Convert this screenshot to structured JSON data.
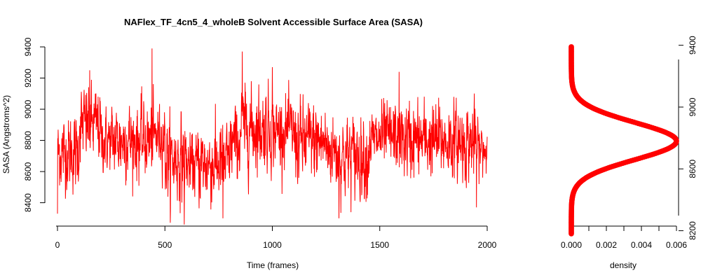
{
  "chart_data": [
    {
      "type": "line",
      "title": "NAFlex_TF_4cn5_4_wholeB Solvent Accessible Surface Area (SASA)",
      "xlabel": "Time (frames)",
      "ylabel": "SASA (Angstroms^2)",
      "xlim": [
        0,
        2000
      ],
      "ylim": [
        8250,
        9400
      ],
      "xticks": [
        0,
        500,
        1000,
        1500,
        2000
      ],
      "yticks": [
        8400,
        8600,
        8800,
        9000,
        9200,
        9400
      ],
      "grid": false,
      "color": "#ff0000",
      "n_points": 2001,
      "segments": [
        {
          "x": [
            0,
            100
          ],
          "mean": 8720,
          "sd": 110
        },
        {
          "x": [
            100,
            200
          ],
          "mean": 8900,
          "sd": 110
        },
        {
          "x": [
            200,
            250
          ],
          "mean": 8800,
          "sd": 90
        },
        {
          "x": [
            250,
            450
          ],
          "mean": 8800,
          "sd": 110
        },
        {
          "x": [
            450,
            500
          ],
          "mean": 8830,
          "sd": 90
        },
        {
          "x": [
            500,
            600
          ],
          "mean": 8680,
          "sd": 120
        },
        {
          "x": [
            600,
            650
          ],
          "mean": 8640,
          "sd": 90
        },
        {
          "x": [
            650,
            800
          ],
          "mean": 8650,
          "sd": 120
        },
        {
          "x": [
            800,
            850
          ],
          "mean": 8780,
          "sd": 110
        },
        {
          "x": [
            850,
            1000
          ],
          "mean": 8880,
          "sd": 120
        },
        {
          "x": [
            1000,
            1100
          ],
          "mean": 8860,
          "sd": 100
        },
        {
          "x": [
            1100,
            1250
          ],
          "mean": 8790,
          "sd": 120
        },
        {
          "x": [
            1250,
            1300
          ],
          "mean": 8740,
          "sd": 100
        },
        {
          "x": [
            1300,
            1450
          ],
          "mean": 8700,
          "sd": 120
        },
        {
          "x": [
            1450,
            1500
          ],
          "mean": 8800,
          "sd": 90
        },
        {
          "x": [
            1500,
            1600
          ],
          "mean": 8820,
          "sd": 100
        },
        {
          "x": [
            1600,
            1800
          ],
          "mean": 8800,
          "sd": 110
        },
        {
          "x": [
            1800,
            1950
          ],
          "mean": 8790,
          "sd": 110
        },
        {
          "x": [
            1950,
            2000
          ],
          "mean": 8740,
          "sd": 80
        }
      ],
      "spikes": [
        {
          "x": 0,
          "y": 8330
        },
        {
          "x": 150,
          "y": 9250
        },
        {
          "x": 440,
          "y": 9390
        },
        {
          "x": 590,
          "y": 8260
        },
        {
          "x": 770,
          "y": 8300
        },
        {
          "x": 860,
          "y": 9370
        },
        {
          "x": 1000,
          "y": 9270
        },
        {
          "x": 1310,
          "y": 8300
        },
        {
          "x": 1590,
          "y": 9240
        },
        {
          "x": 1950,
          "y": 8370
        }
      ]
    },
    {
      "type": "line",
      "xlabel": "density",
      "ylabel": "",
      "xlim": [
        0,
        0.006
      ],
      "ylim": [
        8180,
        9480
      ],
      "xticks": [
        "0.000",
        "0.002",
        "0.004",
        "0.006"
      ],
      "yticks": [
        8200,
        8600,
        9000,
        9400
      ],
      "grid": false,
      "color": "#ff0000",
      "density_mean": 8780,
      "density_sd": 120,
      "density_peak": 0.006,
      "y_range": [
        8180,
        9390
      ]
    }
  ]
}
